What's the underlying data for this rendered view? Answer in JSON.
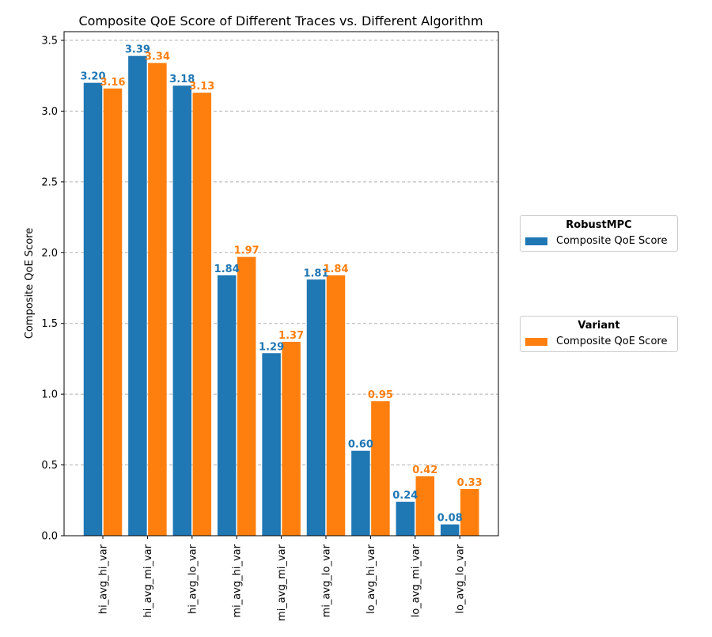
{
  "chart_data": {
    "type": "bar",
    "title": "Composite QoE Score of Different Traces vs. Different Algorithm",
    "xlabel": "",
    "ylabel": "Composite QoE Score",
    "ylim": [
      0,
      3.55
    ],
    "yticks": [
      "0.0",
      "0.5",
      "1.0",
      "1.5",
      "2.0",
      "2.5",
      "3.0",
      "3.5"
    ],
    "grid": "y",
    "categories": [
      "hi_avg_hi_var",
      "hi_avg_mi_var",
      "hi_avg_lo_var",
      "mi_avg_hi_var",
      "mi_avg_mi_var",
      "mi_avg_lo_var",
      "lo_avg_hi_var",
      "lo_avg_mi_var",
      "lo_avg_lo_var"
    ],
    "series": [
      {
        "name": "Composite QoE Score",
        "color": "#1f77b4",
        "values": [
          3.2,
          3.39,
          3.18,
          1.84,
          1.29,
          1.81,
          0.6,
          0.24,
          0.08
        ],
        "labels": [
          "3.20",
          "3.39",
          "3.18",
          "1.84",
          "1.29",
          "1.81",
          "0.60",
          "0.24",
          "0.08"
        ]
      },
      {
        "name": "Composite QoE Score",
        "color": "#ff7f0e",
        "values": [
          3.16,
          3.34,
          3.13,
          1.97,
          1.37,
          1.84,
          0.95,
          0.42,
          0.33
        ],
        "labels": [
          "3.16",
          "3.34",
          "3.13",
          "1.97",
          "1.37",
          "1.84",
          "0.95",
          "0.42",
          "0.33"
        ]
      }
    ],
    "legends": [
      {
        "title": "RobustMPC",
        "label": "Composite QoE Score",
        "color": "#1f77b4"
      },
      {
        "title": "Variant",
        "label": "Composite QoE Score",
        "color": "#ff7f0e"
      }
    ],
    "legend_placement": "right-outside"
  }
}
